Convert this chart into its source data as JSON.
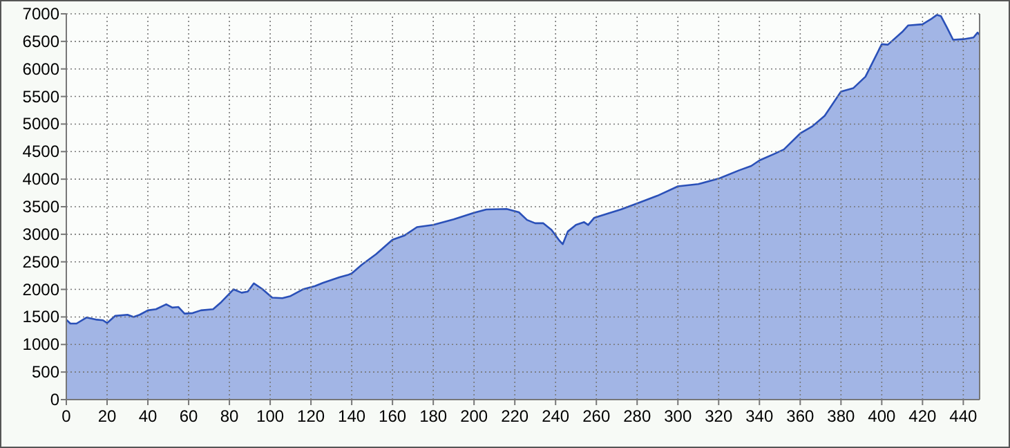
{
  "chart_data": {
    "type": "area",
    "x": [
      0,
      2,
      5,
      10,
      15,
      18,
      20,
      24,
      30,
      33,
      36,
      40,
      44,
      49,
      52,
      55,
      58,
      62,
      66,
      72,
      76,
      82,
      86,
      89,
      92,
      96,
      101,
      106,
      110,
      116,
      122,
      126,
      130,
      134,
      138,
      140,
      145,
      152,
      160,
      166,
      172,
      180,
      190,
      200,
      206,
      216,
      222,
      226,
      230,
      234,
      238,
      242,
      243.5,
      246,
      250,
      254,
      256,
      259,
      266,
      272,
      280,
      290,
      300,
      310,
      320,
      330,
      336,
      340,
      348,
      352,
      360,
      366,
      372,
      380,
      386,
      392,
      400,
      403,
      410,
      413,
      420,
      424,
      427,
      429,
      432,
      435,
      440,
      445,
      447,
      448
    ],
    "series": [
      {
        "color": "#2a50b8",
        "values": [
          1450,
          1380,
          1380,
          1490,
          1450,
          1440,
          1390,
          1520,
          1540,
          1500,
          1540,
          1620,
          1640,
          1730,
          1670,
          1680,
          1560,
          1570,
          1620,
          1640,
          1770,
          2000,
          1940,
          1960,
          2110,
          2010,
          1850,
          1840,
          1880,
          2000,
          2060,
          2120,
          2170,
          2220,
          2260,
          2290,
          2450,
          2640,
          2900,
          2980,
          3130,
          3170,
          3270,
          3390,
          3450,
          3460,
          3400,
          3260,
          3200,
          3200,
          3080,
          2880,
          2820,
          3050,
          3170,
          3220,
          3170,
          3300,
          3380,
          3450,
          3560,
          3700,
          3870,
          3910,
          4010,
          4160,
          4240,
          4340,
          4470,
          4540,
          4830,
          4960,
          5150,
          5590,
          5650,
          5860,
          6450,
          6440,
          6670,
          6790,
          6810,
          6900,
          6980,
          6960,
          6750,
          6530,
          6540,
          6570,
          6660,
          6620
        ]
      }
    ],
    "xlim": [
      0,
      448
    ],
    "xticks": [
      0,
      20,
      40,
      60,
      80,
      100,
      120,
      140,
      160,
      180,
      200,
      220,
      240,
      260,
      280,
      300,
      320,
      340,
      360,
      380,
      400,
      420,
      440
    ],
    "ylim": [
      0,
      7000
    ],
    "yticks": [
      0,
      500,
      1000,
      1500,
      2000,
      2500,
      3000,
      3500,
      4000,
      4500,
      5000,
      5500,
      6000,
      6500,
      7000
    ],
    "grid": true
  }
}
